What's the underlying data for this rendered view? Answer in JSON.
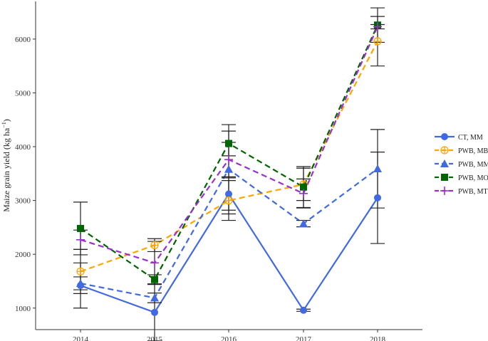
{
  "chart_data": {
    "type": "line",
    "title": "",
    "xlabel": "",
    "ylabel": "Maize grain yield (kg ha",
    "ylabel_unit_sup": "−1",
    "ylabel_close": ")",
    "categories": [
      "2014",
      "2015",
      "2016",
      "2017",
      "2018"
    ],
    "ylim": [
      600,
      6700
    ],
    "yticks": [
      1000,
      2000,
      3000,
      4000,
      5000,
      6000
    ],
    "legend_position": "right",
    "grid": false,
    "series": [
      {
        "name": "CT, MM",
        "color": "#4169E1",
        "marker": "circle",
        "line_style": "solid",
        "values": [
          1420,
          920,
          3120,
          960,
          3050
        ],
        "error": [
          420,
          530,
          300,
          20,
          850
        ]
      },
      {
        "name": "PWB, MB",
        "color": "#FFA500",
        "marker": "circle-plus",
        "line_style": "dashed",
        "values": [
          1680,
          2170,
          3000,
          3300,
          5960
        ],
        "error": [
          410,
          120,
          370,
          300,
          460
        ]
      },
      {
        "name": "PWB, MM",
        "color": "#4169E1",
        "marker": "triangle",
        "line_style": "dashed",
        "values": [
          1460,
          1190,
          3580,
          2570,
          3590
        ],
        "error": [
          120,
          90,
          830,
          60,
          730
        ]
      },
      {
        "name": "PWB, MO",
        "color": "#006400",
        "marker": "square",
        "line_style": "dashed",
        "values": [
          2480,
          1530,
          4060,
          3250,
          6260
        ],
        "error": [
          490,
          90,
          230,
          380,
          320
        ]
      },
      {
        "name": "PWB, MT",
        "color": "#9932CC",
        "marker": "plus",
        "line_style": "dashed",
        "values": [
          2270,
          1840,
          3760,
          3130,
          6230
        ],
        "error": [
          180,
          400,
          320,
          270,
          40
        ]
      }
    ]
  }
}
